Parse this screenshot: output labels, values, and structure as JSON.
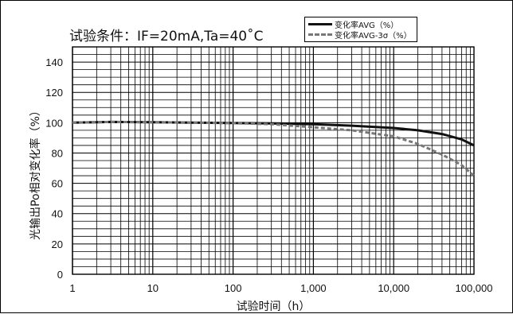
{
  "chart_data": {
    "type": "line",
    "title": "试验条件：IF=20mA,Ta=40˚C",
    "xlabel": "试验时间（h）",
    "ylabel": "光输出Po相对变化率（%）",
    "x_scale": "log",
    "xlim": [
      1,
      100000
    ],
    "ylim": [
      0,
      150
    ],
    "x_tick_values": [
      1,
      10,
      100,
      1000,
      10000,
      100000
    ],
    "x_tick_labels": [
      "1",
      "10",
      "100",
      "1,000",
      "10,000",
      "100,000"
    ],
    "y_tick_values": [
      0,
      20,
      40,
      60,
      80,
      100,
      120,
      140
    ],
    "y_tick_labels": [
      "0",
      "20",
      "40",
      "60",
      "80",
      "100",
      "120",
      "140"
    ],
    "grid": true,
    "legend_position": "top-right",
    "series": [
      {
        "name": "变化率AVG（%）",
        "style": "solid",
        "color": "#111111",
        "x": [
          1,
          3,
          10,
          30,
          100,
          300,
          1000,
          3000,
          10000,
          20000,
          40000,
          70000,
          100000
        ],
        "y": [
          100,
          100.5,
          100.3,
          100,
          99.8,
          99.5,
          99,
          98,
          96.5,
          95,
          92.5,
          89,
          85
        ]
      },
      {
        "name": "变化率AVG-3σ（%）",
        "style": "dashed",
        "color": "#777777",
        "x": [
          1,
          3,
          10,
          30,
          100,
          300,
          1000,
          3000,
          10000,
          20000,
          40000,
          70000,
          100000
        ],
        "y": [
          100,
          100.5,
          100.3,
          100,
          99.7,
          99,
          97,
          95,
          91,
          86,
          79,
          72,
          65
        ]
      }
    ]
  }
}
